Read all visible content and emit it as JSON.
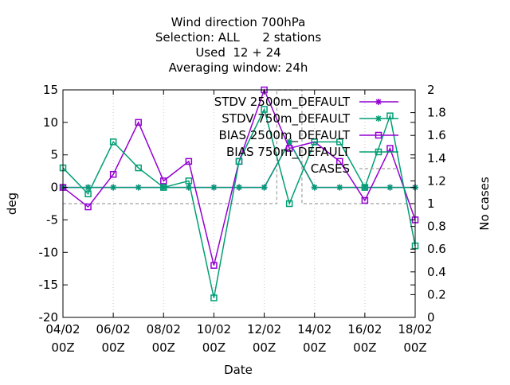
{
  "chart_data": {
    "type": "line",
    "title_lines": [
      "Wind direction 700hPa",
      "Selection: ALL      2 stations",
      "Used  12 + 24",
      "Averaging window: 24h"
    ],
    "xlabel": "Date",
    "ylabel": "deg",
    "y2label": "No cases",
    "x_ticks": [
      {
        "day": 4,
        "line1": "04/02",
        "line2": "00Z"
      },
      {
        "day": 6,
        "line1": "06/02",
        "line2": "00Z"
      },
      {
        "day": 8,
        "line1": "08/02",
        "line2": "00Z"
      },
      {
        "day": 10,
        "line1": "10/02",
        "line2": "00Z"
      },
      {
        "day": 12,
        "line1": "12/02",
        "line2": "00Z"
      },
      {
        "day": 14,
        "line1": "14/02",
        "line2": "00Z"
      },
      {
        "day": 16,
        "line1": "16/02",
        "line2": "00Z"
      },
      {
        "day": 18,
        "line1": "18/02",
        "line2": "00Z"
      }
    ],
    "xlim": [
      4,
      18
    ],
    "ylim": [
      -20,
      15
    ],
    "y_ticks": [
      "-20",
      "-15",
      "-10",
      "-5",
      "0",
      "5",
      "10",
      "15"
    ],
    "y2lim": [
      0,
      2
    ],
    "y2_ticks": [
      "0",
      "0.2",
      "0.4",
      "0.6",
      "0.8",
      "1",
      "1.2",
      "1.4",
      "1.6",
      "1.8",
      "2"
    ],
    "grid": "dotted, vertical at x ticks",
    "legend_position": "top-right",
    "x": [
      4,
      5,
      6,
      7,
      8,
      9,
      10,
      11,
      12,
      13,
      14,
      15,
      16,
      17,
      18
    ],
    "series": [
      {
        "name": "STDV 2500m_DEFAULT",
        "color": "#9400d3",
        "marker": "star",
        "axis": "y",
        "values": [
          0,
          0,
          0,
          0,
          0,
          0,
          0,
          0,
          0,
          7,
          0,
          0,
          0,
          0,
          0
        ]
      },
      {
        "name": "STDV 750m_DEFAULT",
        "color": "#009e73",
        "marker": "star",
        "axis": "y",
        "values": [
          0,
          0,
          0,
          0,
          0,
          0,
          0,
          0,
          0,
          7,
          0,
          0,
          0,
          0,
          0
        ]
      },
      {
        "name": "BIAS 2500m_DEFAULT",
        "color": "#9400d3",
        "marker": "square",
        "axis": "y",
        "values": [
          0,
          -3,
          2,
          10,
          1,
          4,
          -12,
          4,
          15,
          6,
          7,
          4,
          -2,
          6,
          -5
        ]
      },
      {
        "name": "BIAS 750m_DEFAULT",
        "color": "#009e73",
        "marker": "square",
        "axis": "y",
        "values": [
          3,
          -1,
          7,
          3,
          0,
          1,
          -17,
          4,
          12,
          -2.5,
          7,
          7,
          0,
          11,
          -9
        ]
      },
      {
        "name": "CASES",
        "color": "#a0a0a0",
        "marker": "none",
        "axis": "y2",
        "style": "dashed-step",
        "values": [
          1,
          1,
          1,
          1,
          1,
          1,
          1,
          1,
          1,
          2,
          1,
          1,
          1,
          1,
          1
        ]
      }
    ]
  }
}
